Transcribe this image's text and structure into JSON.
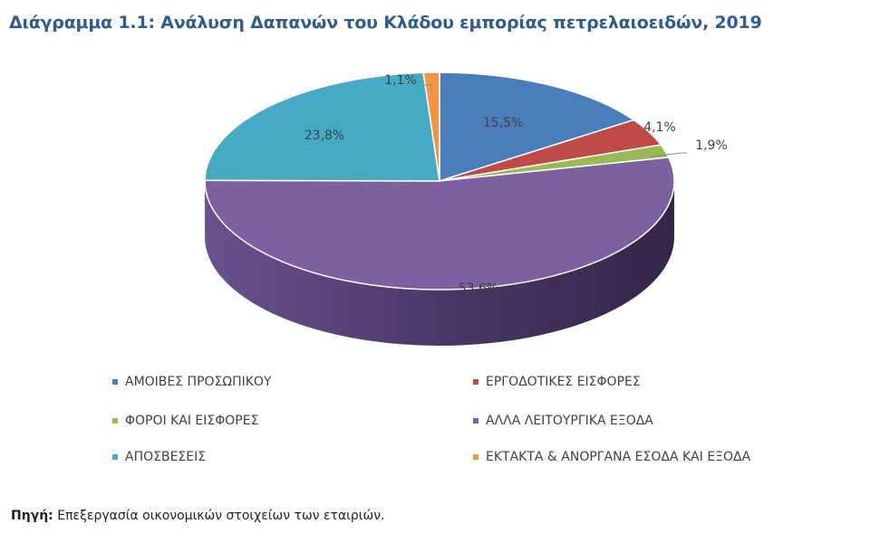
{
  "title": "Διάγραμμα 1.1: Ανάλυση Δαπανών του Κλάδου εμπορίας πετρελαιοειδών, 2019",
  "chart_data": {
    "type": "pie",
    "style": "3d",
    "title": "Διάγραμμα 1.1: Ανάλυση Δαπανών του Κλάδου εμπορίας πετρελαιοειδών, 2019",
    "categories": [
      "ΑΜΟΙΒΕΣ ΠΡΟΣΩΠΙΚΟΥ",
      "ΕΡΓΟΔΟΤΙΚΕΣ ΕΙΣΦΟΡΕΣ",
      "ΦΟΡΟΙ ΚΑΙ ΕΙΣΦΟΡΕΣ",
      "ΑΛΛΑ ΛΕΙΤΟΥΡΓΙΚΑ ΕΞΟΔΑ",
      "ΑΠΟΣΒΕΣΕΙΣ",
      "ΕΚΤΑΚΤΑ & ΑΝΟΡΓΑΝΑ ΕΣΟΔΑ ΚΑΙ ΕΞΟΔΑ"
    ],
    "values": [
      15.5,
      4.1,
      1.9,
      53.6,
      23.8,
      1.1
    ],
    "labels": [
      "15,5%",
      "4,1%",
      "1,9%",
      "53,6%",
      "23,8%",
      "1,1%"
    ],
    "colors": [
      "#4a7ebb",
      "#be4b48",
      "#98b954",
      "#7d60a0",
      "#46aac5",
      "#f59541"
    ],
    "unit": "%",
    "legend_position": "bottom"
  },
  "legend": [
    {
      "label": "ΑΜΟΙΒΕΣ ΠΡΟΣΩΠΙΚΟΥ",
      "color": "#4a7ebb"
    },
    {
      "label": "ΕΡΓΟΔΟΤΙΚΕΣ ΕΙΣΦΟΡΕΣ",
      "color": "#be4b48"
    },
    {
      "label": "ΦΟΡΟΙ ΚΑΙ ΕΙΣΦΟΡΕΣ",
      "color": "#98b954"
    },
    {
      "label": "ΑΛΛΑ ΛΕΙΤΟΥΡΓΙΚΑ ΕΞΟΔΑ",
      "color": "#7d60a0"
    },
    {
      "label": "ΑΠΟΣΒΕΣΕΙΣ",
      "color": "#46aac5"
    },
    {
      "label": "ΕΚΤΑΚΤΑ & ΑΝΟΡΓΑΝΑ ΕΣΟΔΑ ΚΑΙ ΕΞΟΔΑ",
      "color": "#f59541"
    }
  ],
  "source": {
    "prefix": "Πηγή:",
    "text": " Επεξεργασία οικονομικών στοιχείων των εταιριών."
  }
}
